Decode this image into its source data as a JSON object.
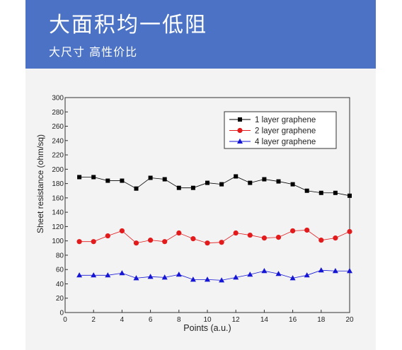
{
  "banner": {
    "title": "大面积均一低阻",
    "subtitle": "大尺寸 高性价比",
    "color": "#4b72c4"
  },
  "chart_data": {
    "type": "line",
    "xlabel": "Points (a.u.)",
    "ylabel": "Sheet resistance (ohm/sq)",
    "xlim": [
      0,
      20
    ],
    "ylim": [
      0,
      300
    ],
    "xticks": [
      0,
      2,
      4,
      6,
      8,
      10,
      12,
      14,
      16,
      18,
      20
    ],
    "yticks": [
      0,
      20,
      40,
      60,
      80,
      100,
      120,
      140,
      160,
      180,
      200,
      220,
      240,
      260,
      280,
      300
    ],
    "grid": false,
    "legend_position": "top-right",
    "x": [
      1,
      2,
      3,
      4,
      5,
      6,
      7,
      8,
      9,
      10,
      11,
      12,
      13,
      14,
      15,
      16,
      17,
      18,
      19,
      20
    ],
    "series": [
      {
        "name": "1 layer graphene",
        "color": "#000000",
        "marker": "square",
        "values": [
          189,
          189,
          184,
          184,
          173,
          188,
          186,
          174,
          174,
          181,
          179,
          190,
          181,
          186,
          183,
          179,
          170,
          167,
          167,
          163
        ]
      },
      {
        "name": "2 layer graphene",
        "color": "#e31a1c",
        "marker": "circle",
        "values": [
          99,
          99,
          107,
          114,
          97,
          101,
          99,
          111,
          103,
          97,
          98,
          111,
          108,
          104,
          105,
          114,
          115,
          101,
          104,
          113
        ]
      },
      {
        "name": "4 layer graphene",
        "color": "#1515d6",
        "marker": "triangle",
        "values": [
          52,
          52,
          52,
          55,
          48,
          50,
          49,
          53,
          46,
          46,
          45,
          49,
          53,
          58,
          54,
          48,
          52,
          59,
          58,
          58
        ]
      }
    ]
  }
}
